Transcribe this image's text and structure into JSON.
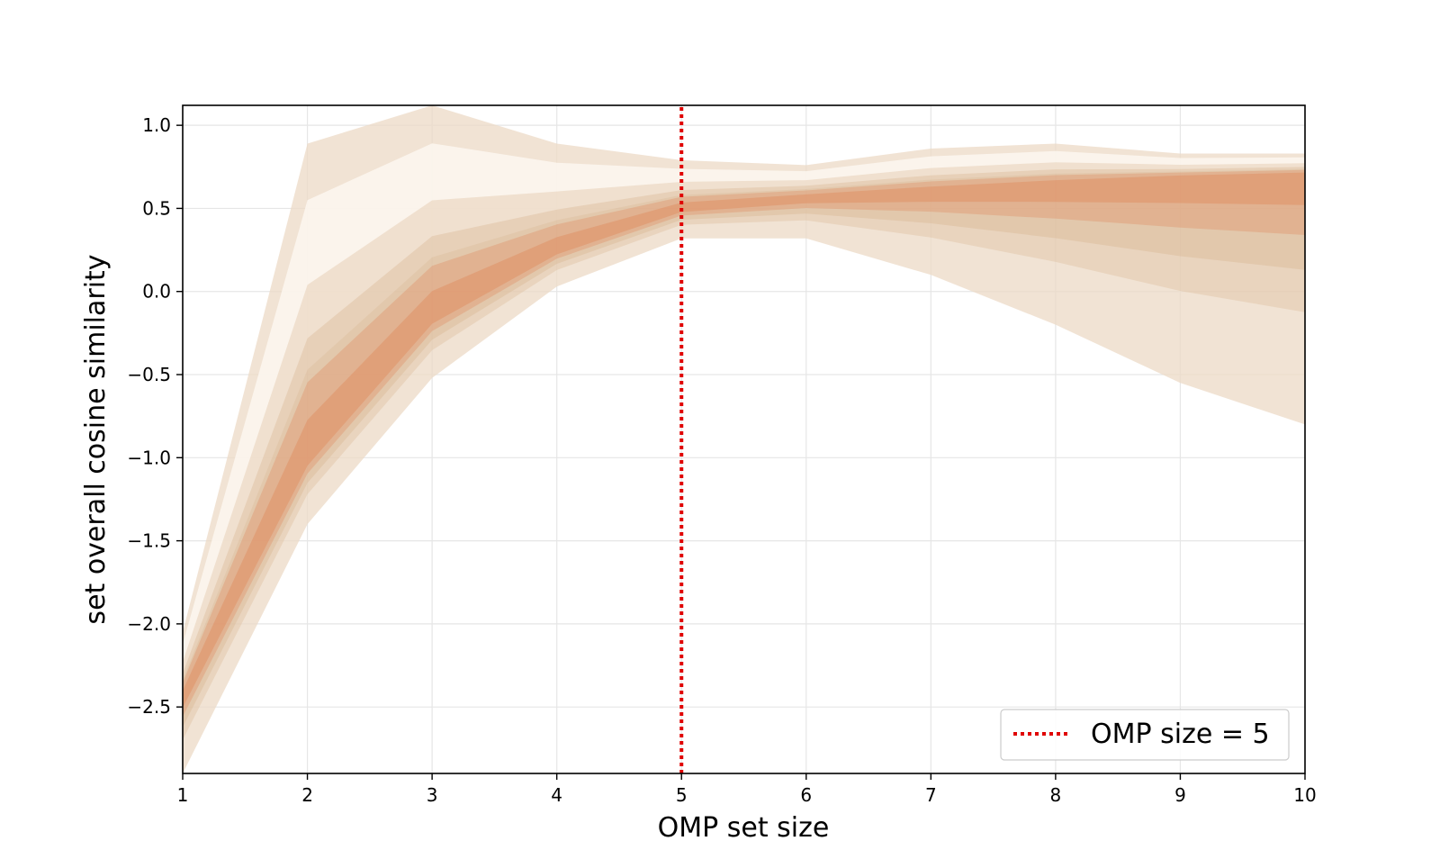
{
  "chart_data": {
    "type": "area",
    "title": "",
    "xlabel": "OMP set size",
    "ylabel": "set overall cosine similarity",
    "xlim": [
      1,
      10
    ],
    "ylim": [
      -2.9,
      1.12
    ],
    "grid": true,
    "x": [
      1,
      2,
      3,
      4,
      5,
      6,
      7,
      8,
      9,
      10
    ],
    "x_tick_labels": [
      "1",
      "2",
      "3",
      "4",
      "5",
      "6",
      "7",
      "8",
      "9",
      "10"
    ],
    "y_ticks": [
      1.0,
      0.5,
      0.0,
      -0.5,
      -1.0,
      -1.5,
      -2.0,
      -2.5
    ],
    "y_tick_labels": [
      "1.0",
      "0.5",
      "0.0",
      "−0.5",
      "−1.0",
      "−1.5",
      "−2.0",
      "−2.5"
    ],
    "series": [
      {
        "name": "envelope upper",
        "values": [
          -2.05,
          0.89,
          1.12,
          0.89,
          0.79,
          0.76,
          0.86,
          0.89,
          0.83,
          0.83
        ]
      },
      {
        "name": "envelope lower",
        "values": [
          -2.9,
          -1.4,
          -0.52,
          0.03,
          0.32,
          0.32,
          0.1,
          -0.2,
          -0.55,
          -0.8
        ]
      },
      {
        "name": "density center",
        "values": [
          -2.45,
          -1.0,
          -0.15,
          0.25,
          0.5,
          0.56,
          0.6,
          0.64,
          0.68,
          0.7
        ]
      }
    ],
    "reference_line": {
      "x": 5,
      "label": "OMP size = 5",
      "color": "#e00000",
      "style": "dotted"
    },
    "legend": {
      "position": "lower-right",
      "entries": [
        "OMP size = 5"
      ]
    },
    "colors": {
      "envelope": "#ecd9c6",
      "light": "#fdf7f0",
      "dense": "#e08a5e",
      "mid": "#d8b28c"
    }
  }
}
